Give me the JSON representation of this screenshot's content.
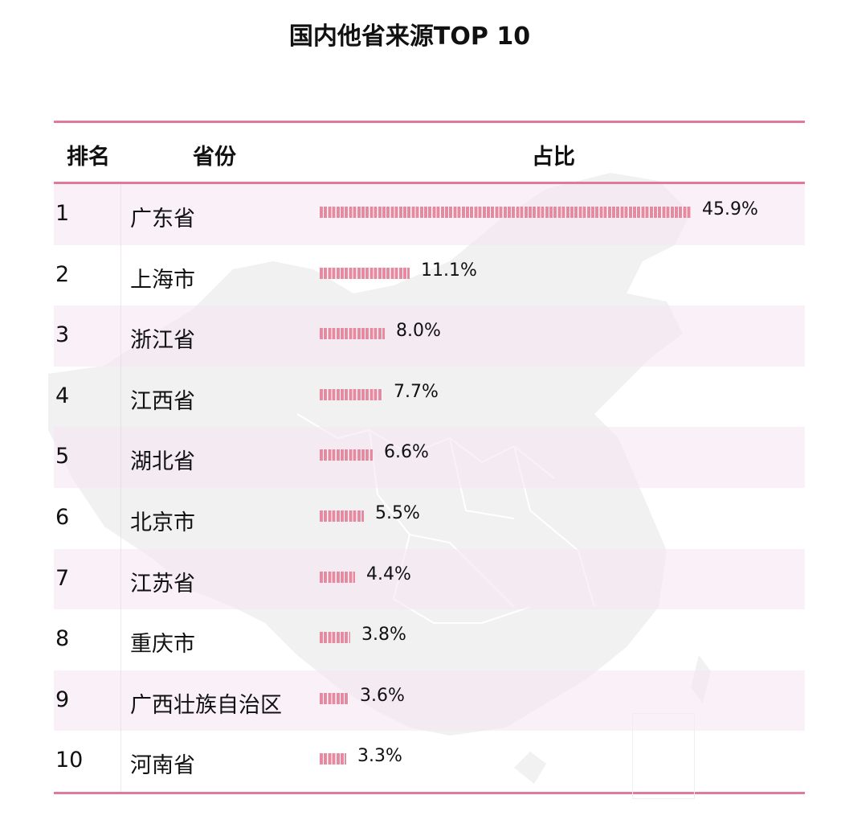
{
  "title": "国内他省来源TOP 10",
  "header": {
    "rank": "排名",
    "province": "省份",
    "share": "占比"
  },
  "colors": {
    "accent_rule": "#e07a9a",
    "bar": "#e68aa2",
    "row_alt": "#f8eff7",
    "map": "#efefef"
  },
  "rows": [
    {
      "rank": "1",
      "province": "广东省",
      "value": 45.9,
      "label": "45.9%"
    },
    {
      "rank": "2",
      "province": "上海市",
      "value": 11.1,
      "label": "11.1%"
    },
    {
      "rank": "3",
      "province": "浙江省",
      "value": 8.0,
      "label": "8.0%"
    },
    {
      "rank": "4",
      "province": "江西省",
      "value": 7.7,
      "label": "7.7%"
    },
    {
      "rank": "5",
      "province": "湖北省",
      "value": 6.6,
      "label": "6.6%"
    },
    {
      "rank": "6",
      "province": "北京市",
      "value": 5.5,
      "label": "5.5%"
    },
    {
      "rank": "7",
      "province": "江苏省",
      "value": 4.4,
      "label": "4.4%"
    },
    {
      "rank": "8",
      "province": "重庆市",
      "value": 3.8,
      "label": "3.8%"
    },
    {
      "rank": "9",
      "province": "广西壮族自治区",
      "value": 3.6,
      "label": "3.6%"
    },
    {
      "rank": "10",
      "province": "河南省",
      "value": 3.3,
      "label": "3.3%"
    }
  ],
  "chart_data": {
    "type": "bar",
    "orientation": "horizontal",
    "title": "国内他省来源TOP 10",
    "columns": [
      "排名",
      "省份",
      "占比"
    ],
    "categories": [
      "广东省",
      "上海市",
      "浙江省",
      "江西省",
      "湖北省",
      "北京市",
      "江苏省",
      "重庆市",
      "广西壮族自治区",
      "河南省"
    ],
    "values": [
      45.9,
      11.1,
      8.0,
      7.7,
      6.6,
      5.5,
      4.4,
      3.8,
      3.6,
      3.3
    ],
    "unit": "%",
    "xlabel": "",
    "ylabel": "",
    "grid": false,
    "legend": "none"
  }
}
